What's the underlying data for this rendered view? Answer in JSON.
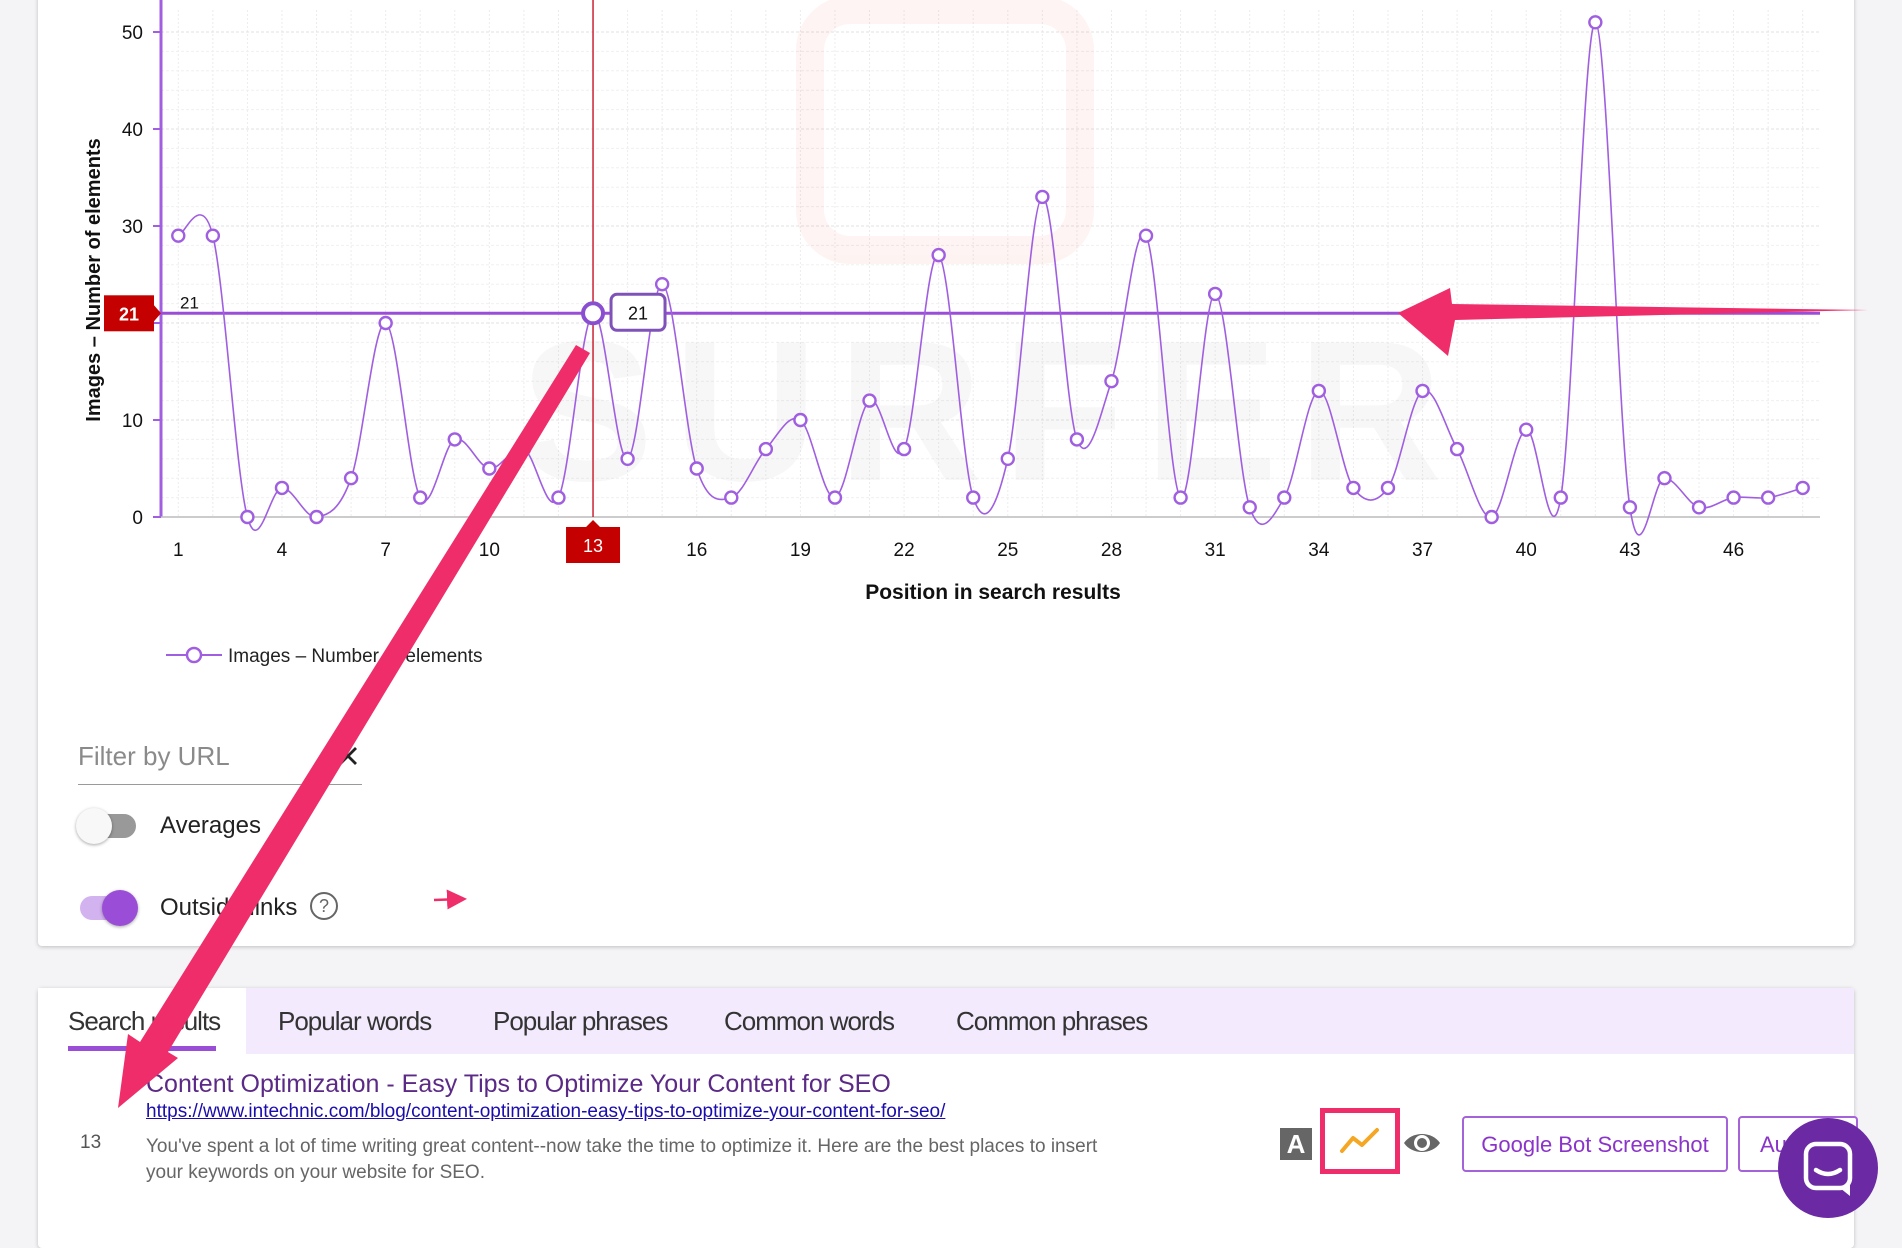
{
  "chart_data": {
    "type": "line",
    "ylabel": "Images – Number of elements",
    "xlabel": "Position in search results",
    "ylim": [
      0,
      50
    ],
    "y_ticks": [
      0,
      10,
      20,
      30,
      40,
      50
    ],
    "x_ticks": [
      1,
      4,
      7,
      10,
      13,
      16,
      19,
      22,
      25,
      28,
      31,
      34,
      37,
      40,
      43,
      46
    ],
    "grid": true,
    "legend_position": "bottom-left",
    "series": [
      {
        "name": "Images – Number of elements",
        "color": "#a05ee0",
        "x": [
          1,
          2,
          3,
          4,
          5,
          6,
          7,
          8,
          9,
          10,
          11,
          12,
          13,
          14,
          15,
          16,
          17,
          18,
          19,
          20,
          21,
          22,
          23,
          24,
          25,
          26,
          27,
          28,
          29,
          30,
          31,
          32,
          33,
          34,
          35,
          36,
          37,
          38,
          39,
          40,
          41,
          42,
          43,
          44,
          45,
          46,
          47,
          48
        ],
        "values": [
          29,
          29,
          0,
          3,
          0,
          4,
          20,
          2,
          8,
          5,
          7,
          2,
          21,
          6,
          24,
          5,
          2,
          7,
          10,
          2,
          12,
          7,
          27,
          2,
          6,
          33,
          8,
          14,
          29,
          2,
          23,
          1,
          2,
          13,
          3,
          3,
          13,
          7,
          0,
          9,
          2,
          51,
          1,
          4,
          1,
          2,
          2,
          3
        ]
      }
    ],
    "crosshair": {
      "x_label": "13",
      "y_label": "21",
      "point_label": "21",
      "line_label": "21"
    }
  },
  "legend": {
    "label": "Images – Number of elements"
  },
  "controls": {
    "filter_placeholder": "Filter by URL",
    "averages_label": "Averages",
    "averages_on": false,
    "outside_links_label": "Outside links",
    "outside_links_on": true,
    "help_symbol": "?"
  },
  "tabs": [
    {
      "label": "Search results",
      "active": true
    },
    {
      "label": "Popular words",
      "active": false
    },
    {
      "label": "Popular phrases",
      "active": false
    },
    {
      "label": "Common words",
      "active": false
    },
    {
      "label": "Common phrases",
      "active": false
    }
  ],
  "result": {
    "rank": "13",
    "title": "Content Optimization - Easy Tips to Optimize Your Content for SEO",
    "url": "https://www.intechnic.com/blog/content-optimization-easy-tips-to-optimize-your-content-for-seo/",
    "description": "You've spent a lot of time writing great content--now take the time to optimize it. Here are the best places to insert your keywords on your website for SEO.",
    "a_icon_label": "A",
    "google_bot_button": "Google Bot Screenshot",
    "audit_button": "Au"
  },
  "colors": {
    "accent": "#a05ee0",
    "crosshair_red": "#cc0000",
    "annotation_pink": "#ee2d6a",
    "tab_bg": "#f3eafd",
    "link_blue": "#1a0dab",
    "title_purple": "#5b2a86",
    "chat_purple": "#6b2aa4"
  },
  "icons": {
    "clear": "close-icon",
    "chart": "line-chart-icon",
    "eye": "eye-icon",
    "chat": "chat-icon",
    "help": "help-circle-icon"
  }
}
